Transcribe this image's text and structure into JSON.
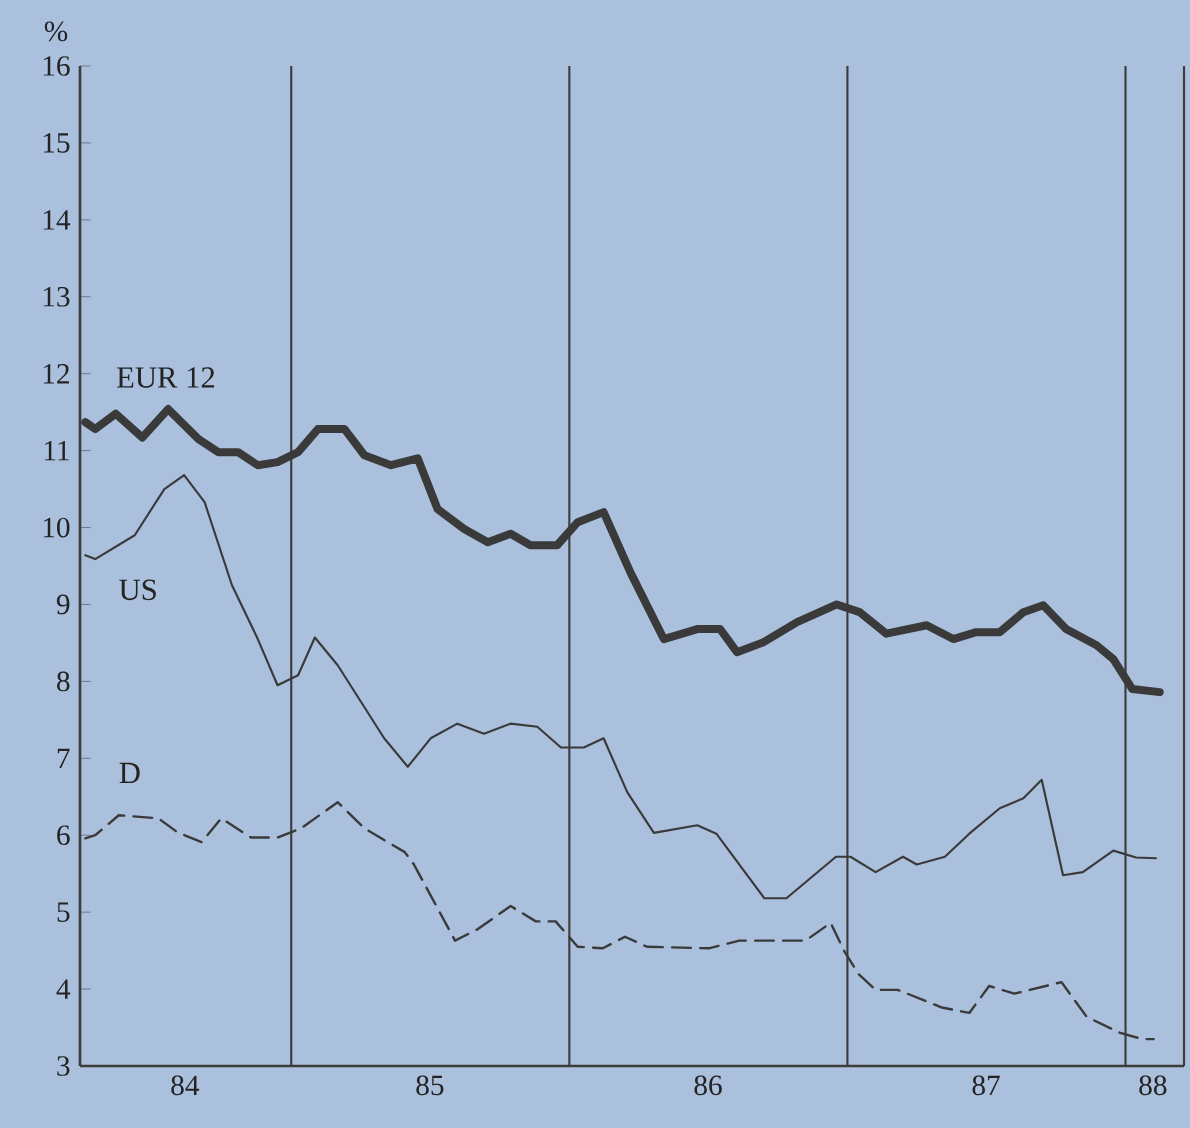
{
  "chart_data": {
    "type": "line",
    "ylabel": "%",
    "xlim": [
      "1984-03-29",
      "1988-03-18"
    ],
    "ylim": [
      3,
      16
    ],
    "xticks": [
      {
        "value": "1984-08-14",
        "label": "84"
      },
      {
        "value": "1985-07-02",
        "label": "85"
      },
      {
        "value": "1986-07-02",
        "label": "86"
      },
      {
        "value": "1987-07-02",
        "label": "87"
      },
      {
        "value": "1988-02-06",
        "label": "88"
      }
    ],
    "yticks": [
      3,
      4,
      5,
      6,
      7,
      8,
      9,
      10,
      11,
      12,
      13,
      14,
      15,
      16
    ],
    "grid": false,
    "legend": false,
    "ref_lines": [
      {
        "axis": "x",
        "value": "1985-01-01",
        "color": "#3c3c3c"
      },
      {
        "axis": "x",
        "value": "1986-01-01",
        "color": "#3c3c3c"
      },
      {
        "axis": "x",
        "value": "1987-01-01",
        "color": "#3c3c3c"
      },
      {
        "axis": "x",
        "value": "1988-01-01",
        "color": "#3c3c3c"
      }
    ],
    "series": [
      {
        "name": "EUR 12",
        "color": "#3a3a3a",
        "line_style": "solid",
        "x": [
          "1984-04-05",
          "1984-04-18",
          "1984-05-15",
          "1984-06-19",
          "1984-07-23",
          "1984-09-01",
          "1984-09-27",
          "1984-10-23",
          "1984-11-18",
          "1984-12-14",
          "1985-01-10",
          "1985-02-05",
          "1985-03-12",
          "1985-04-07",
          "1985-05-12",
          "1985-06-16",
          "1985-07-12",
          "1985-08-16",
          "1985-09-16",
          "1985-10-16",
          "1985-11-11",
          "1985-12-16",
          "1986-01-12",
          "1986-02-15",
          "1986-03-22",
          "1986-05-05",
          "1986-06-18",
          "1986-07-18",
          "1986-08-09",
          "1986-09-13",
          "1986-10-27",
          "1986-12-18",
          "1987-01-17",
          "1987-02-21",
          "1987-04-15",
          "1987-05-20",
          "1987-06-19",
          "1987-07-20",
          "1987-08-20",
          "1987-09-15",
          "1987-10-15",
          "1987-11-24",
          "1987-12-16",
          "1988-01-10",
          "1988-02-15"
        ],
        "values": [
          11.37,
          11.28,
          11.48,
          11.17,
          11.54,
          11.15,
          10.98,
          10.98,
          10.81,
          10.85,
          10.98,
          11.28,
          11.28,
          10.94,
          10.81,
          10.9,
          10.24,
          9.98,
          9.81,
          9.92,
          9.77,
          9.77,
          10.07,
          10.2,
          9.42,
          8.55,
          8.68,
          8.68,
          8.38,
          8.51,
          8.77,
          9.0,
          8.9,
          8.62,
          8.73,
          8.55,
          8.64,
          8.64,
          8.9,
          8.99,
          8.68,
          8.47,
          8.29,
          7.9,
          7.86
        ]
      },
      {
        "name": "US",
        "color": "#3a3a3a",
        "line_style": "solid",
        "x": [
          "1984-04-05",
          "1984-04-18",
          "1984-06-09",
          "1984-07-18",
          "1984-08-13",
          "1984-09-09",
          "1984-10-15",
          "1984-11-18",
          "1984-12-14",
          "1985-01-10",
          "1985-02-01",
          "1985-03-03",
          "1985-05-03",
          "1985-06-03",
          "1985-07-03",
          "1985-08-07",
          "1985-09-11",
          "1985-10-16",
          "1985-11-20",
          "1985-12-21",
          "1986-01-20",
          "1986-02-15",
          "1986-03-18",
          "1986-04-22",
          "1986-06-18",
          "1986-07-13",
          "1986-09-14",
          "1986-10-13",
          "1986-12-17",
          "1987-01-05",
          "1987-02-07",
          "1987-03-15",
          "1987-04-02",
          "1987-05-09",
          "1987-06-10",
          "1987-07-20",
          "1987-08-20",
          "1987-09-13",
          "1987-10-11",
          "1987-11-06",
          "1987-12-16",
          "1988-01-15",
          "1988-02-10"
        ],
        "values": [
          9.64,
          9.59,
          9.9,
          10.5,
          10.68,
          10.33,
          9.25,
          8.55,
          7.95,
          8.08,
          8.57,
          8.21,
          7.26,
          6.89,
          7.26,
          7.45,
          7.32,
          7.45,
          7.41,
          7.14,
          7.14,
          7.26,
          6.56,
          6.03,
          6.13,
          6.02,
          5.18,
          5.18,
          5.72,
          5.72,
          5.52,
          5.72,
          5.62,
          5.72,
          6.02,
          6.35,
          6.48,
          6.72,
          5.48,
          5.52,
          5.8,
          5.71,
          5.7
        ]
      },
      {
        "name": "D",
        "color": "#3a3a3a",
        "line_style": "dashed",
        "x": [
          "1984-04-05",
          "1984-04-18",
          "1984-05-19",
          "1984-07-10",
          "1984-08-04",
          "1984-09-05",
          "1984-10-01",
          "1984-11-09",
          "1984-12-14",
          "1985-01-14",
          "1985-03-03",
          "1985-04-07",
          "1985-05-30",
          "1985-06-11",
          "1985-08-04",
          "1985-09-03",
          "1985-10-16",
          "1985-11-18",
          "1985-12-14",
          "1986-01-12",
          "1986-02-14",
          "1986-03-15",
          "1986-04-13",
          "1986-07-03",
          "1986-08-12",
          "1986-11-07",
          "1986-12-10",
          "1986-12-28",
          "1987-01-16",
          "1987-02-07",
          "1987-03-08",
          "1987-05-05",
          "1987-06-10",
          "1987-07-06",
          "1987-08-08",
          "1987-10-09",
          "1987-11-11",
          "1987-12-25",
          "1988-01-23",
          "1988-02-07"
        ],
        "values": [
          5.96,
          6.0,
          6.26,
          6.22,
          6.04,
          5.91,
          6.22,
          5.97,
          5.97,
          6.09,
          6.43,
          6.09,
          5.78,
          5.62,
          4.63,
          4.78,
          5.08,
          4.88,
          4.88,
          4.55,
          4.53,
          4.68,
          4.55,
          4.53,
          4.63,
          4.63,
          4.86,
          4.49,
          4.19,
          3.99,
          3.99,
          3.76,
          3.69,
          4.04,
          3.94,
          4.09,
          3.64,
          3.43,
          3.35,
          3.35
        ]
      }
    ]
  }
}
